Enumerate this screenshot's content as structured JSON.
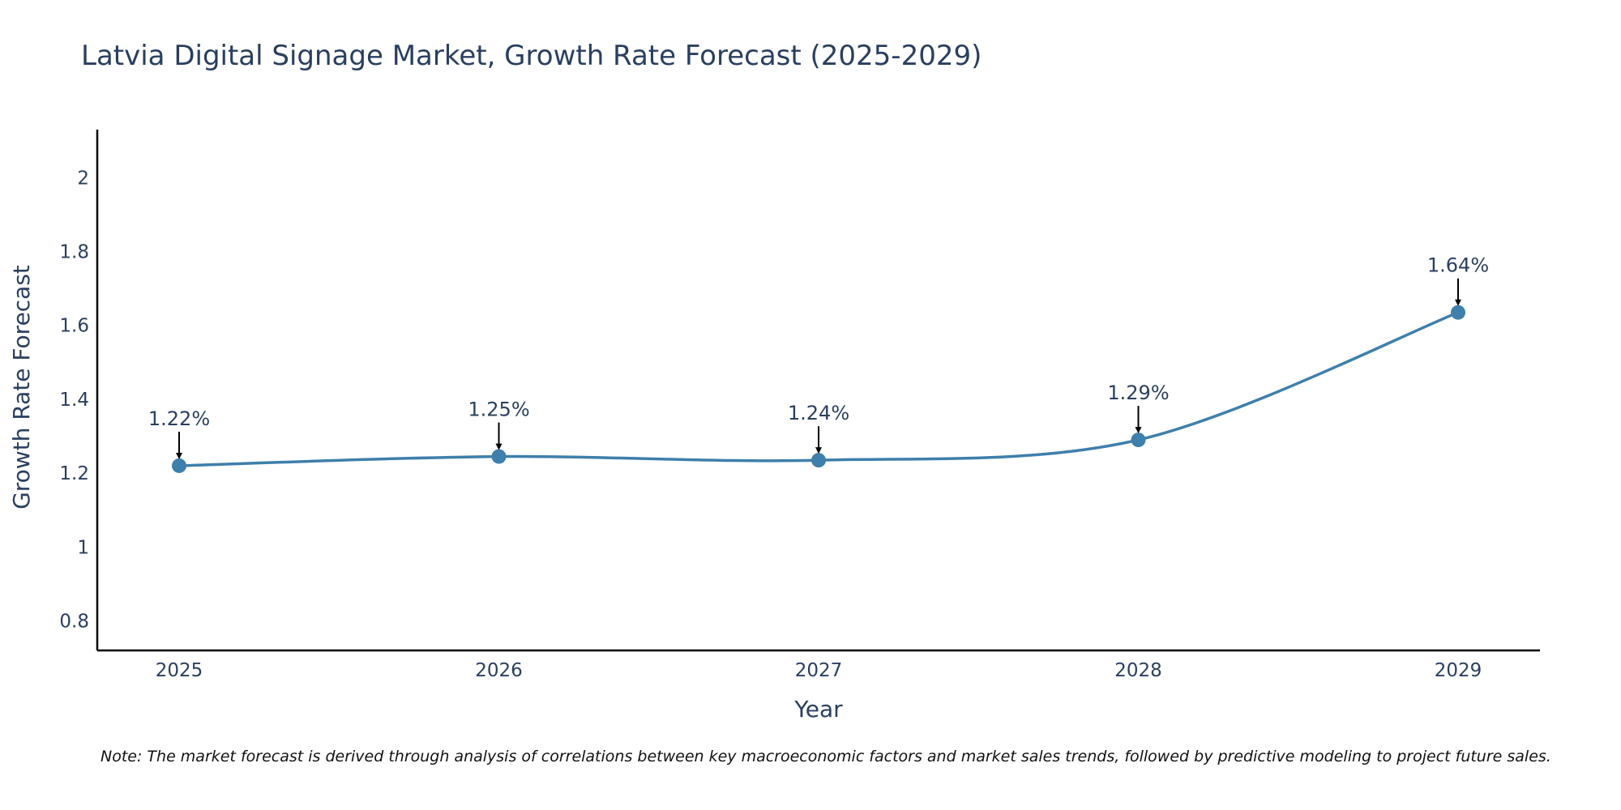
{
  "chart_data": {
    "type": "line",
    "title": "Latvia Digital Signage Market, Growth Rate Forecast (2025-2029)",
    "xlabel": "Year",
    "ylabel": "Growth Rate Forecast",
    "categories": [
      "2025",
      "2026",
      "2027",
      "2028",
      "2029"
    ],
    "series": [
      {
        "name": "Growth Rate Forecast",
        "values": [
          1.22,
          1.245,
          1.235,
          1.29,
          1.635
        ],
        "labels": [
          "1.22%",
          "1.25%",
          "1.24%",
          "1.29%",
          "1.64%"
        ],
        "color": "#3f7fab"
      }
    ],
    "ylim": [
      0.72,
      2.13
    ],
    "yticks": [
      0.8,
      1,
      1.2,
      1.4,
      1.6,
      1.8,
      2
    ],
    "ytick_labels": [
      "0.8",
      "1",
      "1.2",
      "1.4",
      "1.6",
      "1.8",
      "2"
    ],
    "grid": false,
    "note": "Note: The market forecast is derived through analysis of correlations between key macroeconomic factors and market sales trends, followed by predictive modeling to project future sales."
  },
  "colors": {
    "line": "#3f7fab",
    "text": "#2a3f5f",
    "axis": "#000000",
    "arrow": "#000000"
  }
}
